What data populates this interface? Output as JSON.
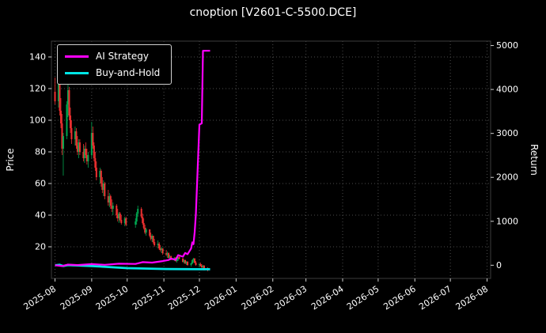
{
  "figure": {
    "background": "#000000"
  },
  "chart_data": {
    "type": "candlestick+line",
    "title": "cnoption [V2601-C-5500.DCE]",
    "ylabel_left": "Price",
    "ylabel_right": "Return",
    "x_domain": [
      "2025-07-29",
      "2026-08-04"
    ],
    "x_ticks": [
      "2025-08",
      "2025-09",
      "2025-10",
      "2025-11",
      "2025-12",
      "2026-01",
      "2026-02",
      "2026-03",
      "2026-04",
      "2026-05",
      "2026-06",
      "2026-07",
      "2026-08"
    ],
    "left_ylim": [
      0,
      150
    ],
    "left_ticks": [
      20,
      40,
      60,
      80,
      100,
      120,
      140
    ],
    "right_ylim": [
      -300,
      5100
    ],
    "right_ticks": [
      0,
      1000,
      2000,
      3000,
      4000,
      5000
    ],
    "grid": true,
    "colors": {
      "up": "#00a650",
      "down": "#ee3030",
      "grid": "#4d4d4d",
      "tick": "#cccccc",
      "text": "#ffffff",
      "ai": "#ff00ff",
      "bh": "#00e5e5"
    },
    "legend": {
      "position": "upper-left",
      "items": [
        {
          "label": "AI Strategy",
          "color": "#ff00ff"
        },
        {
          "label": "Buy-and-Hold",
          "color": "#00e5e5"
        }
      ]
    },
    "candles": [
      [
        "2025-08-01",
        118,
        127,
        110,
        112
      ],
      [
        "2025-08-04",
        112,
        133,
        108,
        128
      ],
      [
        "2025-08-05",
        128,
        131,
        103,
        106
      ],
      [
        "2025-08-06",
        106,
        114,
        95,
        98
      ],
      [
        "2025-08-07",
        98,
        104,
        78,
        82
      ],
      [
        "2025-08-08",
        82,
        92,
        65,
        90
      ],
      [
        "2025-08-11",
        90,
        112,
        88,
        110
      ],
      [
        "2025-08-12",
        110,
        123,
        102,
        119
      ],
      [
        "2025-08-13",
        119,
        121,
        100,
        103
      ],
      [
        "2025-08-14",
        103,
        108,
        92,
        95
      ],
      [
        "2025-08-15",
        95,
        100,
        85,
        88
      ],
      [
        "2025-08-18",
        88,
        96,
        84,
        93
      ],
      [
        "2025-08-19",
        93,
        95,
        82,
        84
      ],
      [
        "2025-08-20",
        84,
        90,
        78,
        80
      ],
      [
        "2025-08-21",
        80,
        88,
        76,
        86
      ],
      [
        "2025-08-22",
        86,
        88,
        78,
        80
      ],
      [
        "2025-08-25",
        80,
        85,
        74,
        76
      ],
      [
        "2025-08-26",
        76,
        84,
        73,
        82
      ],
      [
        "2025-08-27",
        82,
        86,
        76,
        78
      ],
      [
        "2025-08-28",
        78,
        82,
        72,
        74
      ],
      [
        "2025-08-29",
        74,
        80,
        70,
        78
      ],
      [
        "2025-09-01",
        78,
        99,
        76,
        92
      ],
      [
        "2025-09-02",
        92,
        96,
        82,
        84
      ],
      [
        "2025-09-03",
        84,
        86,
        74,
        76
      ],
      [
        "2025-09-04",
        76,
        80,
        68,
        70
      ],
      [
        "2025-09-05",
        70,
        74,
        62,
        64
      ],
      [
        "2025-09-08",
        64,
        70,
        60,
        68
      ],
      [
        "2025-09-09",
        68,
        69,
        58,
        60
      ],
      [
        "2025-09-10",
        60,
        64,
        54,
        56
      ],
      [
        "2025-09-11",
        56,
        62,
        52,
        60
      ],
      [
        "2025-09-12",
        60,
        61,
        50,
        52
      ],
      [
        "2025-09-15",
        52,
        56,
        46,
        48
      ],
      [
        "2025-09-16",
        48,
        54,
        45,
        52
      ],
      [
        "2025-09-17",
        52,
        53,
        44,
        46
      ],
      [
        "2025-09-18",
        46,
        50,
        42,
        44
      ],
      [
        "2025-09-19",
        44,
        48,
        40,
        46
      ],
      [
        "2025-09-22",
        46,
        47,
        38,
        40
      ],
      [
        "2025-09-23",
        40,
        44,
        36,
        38
      ],
      [
        "2025-09-24",
        38,
        42,
        35,
        41
      ],
      [
        "2025-09-25",
        41,
        42,
        36,
        37
      ],
      [
        "2025-09-26",
        37,
        40,
        34,
        35
      ],
      [
        "2025-09-29",
        35,
        39,
        33,
        38
      ],
      [
        "2025-09-30",
        38,
        39,
        33,
        34
      ],
      [
        "2025-10-08",
        34,
        38,
        32,
        36
      ],
      [
        "2025-10-09",
        36,
        42,
        34,
        41
      ],
      [
        "2025-10-10",
        41,
        46,
        39,
        44
      ],
      [
        "2025-10-13",
        44,
        45,
        38,
        39
      ],
      [
        "2025-10-14",
        39,
        41,
        34,
        35
      ],
      [
        "2025-10-15",
        35,
        38,
        31,
        32
      ],
      [
        "2025-10-16",
        32,
        34,
        28,
        29
      ],
      [
        "2025-10-17",
        29,
        32,
        27,
        31
      ],
      [
        "2025-10-20",
        31,
        31,
        26,
        27
      ],
      [
        "2025-10-21",
        27,
        29,
        24,
        25
      ],
      [
        "2025-10-22",
        25,
        28,
        23,
        27
      ],
      [
        "2025-10-23",
        27,
        27,
        22,
        23
      ],
      [
        "2025-10-24",
        23,
        25,
        20,
        21
      ],
      [
        "2025-10-27",
        21,
        24,
        19,
        22
      ],
      [
        "2025-10-28",
        22,
        23,
        18,
        19
      ],
      [
        "2025-10-29",
        19,
        21,
        17,
        18
      ],
      [
        "2025-10-30",
        18,
        20,
        16,
        19
      ],
      [
        "2025-10-31",
        19,
        19,
        15,
        16
      ],
      [
        "2025-11-03",
        16,
        18,
        14,
        15
      ],
      [
        "2025-11-04",
        15,
        17,
        13,
        16
      ],
      [
        "2025-11-05",
        16,
        16.5,
        12.5,
        13
      ],
      [
        "2025-11-06",
        13,
        15,
        12,
        14
      ],
      [
        "2025-11-07",
        14,
        14.5,
        11.5,
        12
      ],
      [
        "2025-11-10",
        12,
        13.5,
        11,
        13
      ],
      [
        "2025-11-11",
        13,
        13.5,
        10.5,
        11
      ],
      [
        "2025-11-12",
        11,
        12.5,
        10,
        12
      ],
      [
        "2025-11-13",
        12,
        14,
        11,
        13.5
      ],
      [
        "2025-11-14",
        13.5,
        15,
        12,
        12.5
      ],
      [
        "2025-11-17",
        12.5,
        13,
        10,
        10.5
      ],
      [
        "2025-11-18",
        10.5,
        12,
        9.5,
        11.5
      ],
      [
        "2025-11-19",
        11.5,
        12,
        9,
        9.5
      ],
      [
        "2025-11-20",
        9.5,
        11,
        8.5,
        10.5
      ],
      [
        "2025-11-21",
        10.5,
        11,
        8,
        8.5
      ],
      [
        "2025-11-24",
        8.5,
        10,
        7.5,
        9.5
      ],
      [
        "2025-11-25",
        9.5,
        12,
        9,
        11.5
      ],
      [
        "2025-11-26",
        11.5,
        13,
        10,
        12.5
      ],
      [
        "2025-11-27",
        12.5,
        13,
        9.5,
        10
      ],
      [
        "2025-11-28",
        10,
        11,
        8,
        8.5
      ],
      [
        "2025-12-01",
        8.5,
        9.5,
        7,
        9
      ],
      [
        "2025-12-02",
        9,
        10,
        7.5,
        8
      ],
      [
        "2025-12-03",
        8,
        9,
        6.5,
        7
      ],
      [
        "2025-12-04",
        7,
        8.5,
        5.5,
        8
      ],
      [
        "2025-12-05",
        8,
        8.5,
        5,
        6
      ],
      [
        "2025-12-08",
        6,
        7,
        4.5,
        5.5
      ]
    ],
    "series": [
      {
        "name": "Buy-and-Hold",
        "color": "#00e5e5",
        "width": 2.8,
        "points": [
          [
            "2025-08-01",
            -2
          ],
          [
            "2025-08-05",
            10
          ],
          [
            "2025-08-08",
            -18
          ],
          [
            "2025-08-12",
            4
          ],
          [
            "2025-09-01",
            -18
          ],
          [
            "2025-10-01",
            -66
          ],
          [
            "2025-11-03",
            -85
          ],
          [
            "2025-12-10",
            -92
          ]
        ]
      },
      {
        "name": "AI Strategy",
        "color": "#ff00ff",
        "width": 2.2,
        "points": [
          [
            "2025-08-01",
            0
          ],
          [
            "2025-08-07",
            -20
          ],
          [
            "2025-08-12",
            15
          ],
          [
            "2025-08-20",
            5
          ],
          [
            "2025-09-01",
            25
          ],
          [
            "2025-09-12",
            10
          ],
          [
            "2025-09-24",
            35
          ],
          [
            "2025-10-08",
            30
          ],
          [
            "2025-10-14",
            70
          ],
          [
            "2025-10-22",
            60
          ],
          [
            "2025-10-31",
            95
          ],
          [
            "2025-11-05",
            120
          ],
          [
            "2025-11-07",
            150
          ],
          [
            "2025-11-11",
            125
          ],
          [
            "2025-11-13",
            230
          ],
          [
            "2025-11-17",
            195
          ],
          [
            "2025-11-19",
            280
          ],
          [
            "2025-11-21",
            250
          ],
          [
            "2025-11-24",
            380
          ],
          [
            "2025-11-25",
            520
          ],
          [
            "2025-11-26",
            480
          ],
          [
            "2025-11-27",
            750
          ],
          [
            "2025-11-28",
            1150
          ],
          [
            "2025-12-01",
            3200
          ],
          [
            "2025-12-03",
            3230
          ],
          [
            "2025-12-04",
            4880
          ],
          [
            "2025-12-10",
            4880
          ]
        ]
      }
    ]
  }
}
